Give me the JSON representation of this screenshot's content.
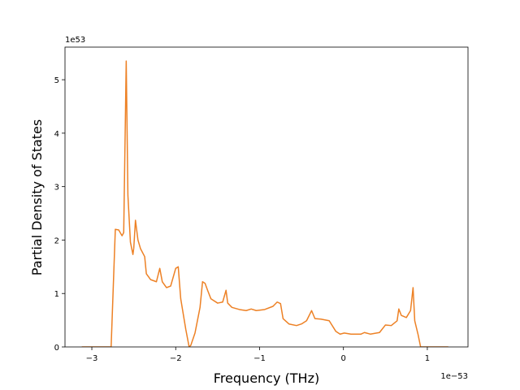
{
  "chart_data": {
    "type": "line",
    "x_label": "Frequency (THz)",
    "y_label": "Partial Density of States",
    "x_offset_label": "1e−53",
    "y_offset_label": "1e53",
    "xlim": [
      -3.32,
      1.485
    ],
    "ylim": [
      0,
      5.61
    ],
    "xticks": [
      {
        "value": -3,
        "label": "−3"
      },
      {
        "value": -2,
        "label": "−2"
      },
      {
        "value": -1,
        "label": "−1"
      },
      0,
      1
    ],
    "yticks": [
      0,
      1,
      2,
      3,
      4,
      5
    ],
    "x": [
      -3.12,
      -2.77,
      -2.72,
      -2.68,
      -2.64,
      -2.62,
      -2.59,
      -2.57,
      -2.54,
      -2.51,
      -2.5,
      -2.48,
      -2.45,
      -2.42,
      -2.37,
      -2.35,
      -2.3,
      -2.23,
      -2.19,
      -2.16,
      -2.11,
      -2.06,
      -2.0,
      -1.97,
      -1.94,
      -1.88,
      -1.84,
      -1.82,
      -1.77,
      -1.71,
      -1.68,
      -1.65,
      -1.62,
      -1.58,
      -1.5,
      -1.44,
      -1.4,
      -1.38,
      -1.33,
      -1.24,
      -1.16,
      -1.1,
      -1.04,
      -0.94,
      -0.84,
      -0.79,
      -0.75,
      -0.72,
      -0.65,
      -0.56,
      -0.5,
      -0.44,
      -0.38,
      -0.34,
      -0.27,
      -0.17,
      -0.09,
      -0.04,
      0.01,
      0.09,
      0.21,
      0.25,
      0.32,
      0.43,
      0.5,
      0.57,
      0.64,
      0.66,
      0.69,
      0.75,
      0.8,
      0.83,
      0.85,
      0.89,
      0.92,
      1.01,
      1.25
    ],
    "series": [
      {
        "color": "#ed8125",
        "values": [
          0,
          0,
          2.2,
          2.19,
          2.08,
          2.14,
          5.35,
          2.84,
          1.96,
          1.73,
          1.85,
          2.37,
          2.0,
          1.84,
          1.69,
          1.37,
          1.26,
          1.22,
          1.47,
          1.22,
          1.11,
          1.14,
          1.47,
          1.5,
          0.9,
          0.33,
          0,
          0.03,
          0.26,
          0.74,
          1.22,
          1.19,
          1.06,
          0.9,
          0.82,
          0.84,
          1.06,
          0.82,
          0.74,
          0.7,
          0.68,
          0.71,
          0.68,
          0.7,
          0.76,
          0.84,
          0.81,
          0.53,
          0.43,
          0.4,
          0.43,
          0.49,
          0.68,
          0.53,
          0.52,
          0.49,
          0.29,
          0.24,
          0.26,
          0.24,
          0.24,
          0.27,
          0.24,
          0.27,
          0.41,
          0.4,
          0.49,
          0.71,
          0.59,
          0.55,
          0.68,
          1.11,
          0.49,
          0.23,
          0,
          0,
          0
        ]
      }
    ]
  }
}
